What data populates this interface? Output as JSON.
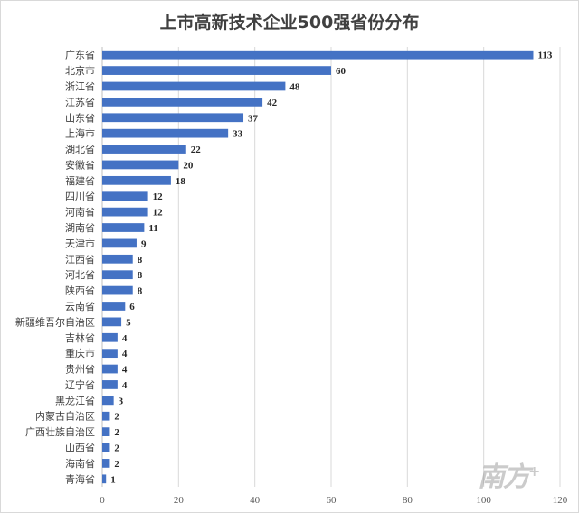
{
  "chart_data": {
    "type": "bar",
    "orientation": "horizontal",
    "title": "上市高新技术企业500强省份分布",
    "categories": [
      "广东省",
      "北京市",
      "浙江省",
      "江苏省",
      "山东省",
      "上海市",
      "湖北省",
      "安徽省",
      "福建省",
      "四川省",
      "河南省",
      "湖南省",
      "天津市",
      "江西省",
      "河北省",
      "陕西省",
      "云南省",
      "新疆维吾尔自治区",
      "吉林省",
      "重庆市",
      "贵州省",
      "辽宁省",
      "黑龙江省",
      "内蒙古自治区",
      "广西壮族自治区",
      "山西省",
      "海南省",
      "青海省"
    ],
    "values": [
      113,
      60,
      48,
      42,
      37,
      33,
      22,
      20,
      18,
      12,
      12,
      11,
      9,
      8,
      8,
      8,
      6,
      5,
      4,
      4,
      4,
      4,
      3,
      2,
      2,
      2,
      2,
      1
    ],
    "xlim": [
      0,
      120
    ],
    "xticks": [
      0,
      20,
      40,
      60,
      80,
      100,
      120
    ],
    "grid": true,
    "legend": "none",
    "bar_color": "#4472c4"
  },
  "watermark": {
    "text": "南方",
    "plus": "+"
  }
}
